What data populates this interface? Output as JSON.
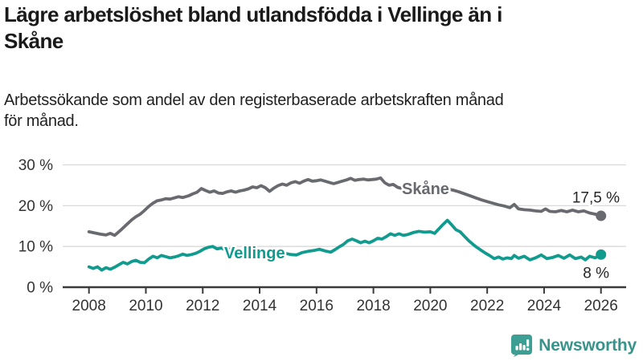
{
  "header": {
    "title": "Lägre arbetslöshet bland utlandsfödda i Vellinge än i Skåne",
    "title_lines": [
      "Lägre arbetslöshet bland utlandsfödda i Vellinge än i",
      "Skåne"
    ],
    "subtitle": "Arbetssökande som andel av den registerbaserade arbetskraften månad för månad.",
    "subtitle_lines": [
      "Arbetssökande som andel av den registerbaserade arbetskraften månad",
      "för månad."
    ]
  },
  "footer": {
    "brand": "Newsworthy",
    "logo_icon": "bar-chart-speech-bubble-icon",
    "accent_color": "#3d9e93",
    "text_color": "#37948a"
  },
  "chart_data": {
    "type": "line",
    "title": "Lägre arbetslöshet bland utlandsfödda i Vellinge än i Skåne",
    "subtitle": "Arbetssökande som andel av den registerbaserade arbetskraften månad för månad.",
    "unit": "%",
    "grid": "horizontal-only",
    "legend_position": "inline-on-line",
    "x_axis": {
      "ticks": [
        2008,
        2010,
        2012,
        2014,
        2016,
        2018,
        2020,
        2022,
        2024,
        2026
      ],
      "range": [
        2007.1,
        2026.9
      ]
    },
    "y_axis": {
      "ticks": [
        0,
        10,
        20,
        30
      ],
      "tick_labels": [
        "0 %",
        "10 %",
        "20 %",
        "30 %"
      ],
      "range": [
        0,
        32
      ]
    },
    "colors": {
      "skane": "#696970",
      "vellinge": "#109b8e",
      "gridline": "#d9d9d9",
      "axis": "#3a3a3a"
    },
    "series": [
      {
        "name": "Skåne",
        "color": "#696970",
        "end_value": 17.5,
        "end_label": "17,5 %",
        "points": [
          [
            2008.0,
            13.6
          ],
          [
            2008.2,
            13.3
          ],
          [
            2008.4,
            13.0
          ],
          [
            2008.6,
            12.8
          ],
          [
            2008.75,
            13.2
          ],
          [
            2008.9,
            12.7
          ],
          [
            2009.0,
            13.3
          ],
          [
            2009.15,
            14.2
          ],
          [
            2009.3,
            15.2
          ],
          [
            2009.5,
            16.5
          ],
          [
            2009.65,
            17.3
          ],
          [
            2009.8,
            17.9
          ],
          [
            2009.95,
            18.8
          ],
          [
            2010.1,
            19.8
          ],
          [
            2010.25,
            20.6
          ],
          [
            2010.4,
            21.2
          ],
          [
            2010.55,
            21.4
          ],
          [
            2010.7,
            21.7
          ],
          [
            2010.85,
            21.6
          ],
          [
            2011.0,
            21.9
          ],
          [
            2011.15,
            22.2
          ],
          [
            2011.3,
            22.0
          ],
          [
            2011.5,
            22.4
          ],
          [
            2011.65,
            22.9
          ],
          [
            2011.8,
            23.3
          ],
          [
            2011.95,
            24.2
          ],
          [
            2012.1,
            23.7
          ],
          [
            2012.25,
            23.3
          ],
          [
            2012.4,
            23.6
          ],
          [
            2012.55,
            23.1
          ],
          [
            2012.7,
            23.0
          ],
          [
            2012.85,
            23.4
          ],
          [
            2013.0,
            23.6
          ],
          [
            2013.15,
            23.3
          ],
          [
            2013.3,
            23.6
          ],
          [
            2013.45,
            23.8
          ],
          [
            2013.6,
            24.1
          ],
          [
            2013.75,
            24.6
          ],
          [
            2013.9,
            24.4
          ],
          [
            2014.05,
            24.9
          ],
          [
            2014.2,
            24.4
          ],
          [
            2014.35,
            23.5
          ],
          [
            2014.5,
            24.3
          ],
          [
            2014.65,
            24.9
          ],
          [
            2014.8,
            25.3
          ],
          [
            2014.95,
            25.0
          ],
          [
            2015.1,
            25.6
          ],
          [
            2015.25,
            25.9
          ],
          [
            2015.4,
            25.5
          ],
          [
            2015.55,
            26.0
          ],
          [
            2015.7,
            26.4
          ],
          [
            2015.85,
            26.0
          ],
          [
            2016.0,
            26.1
          ],
          [
            2016.15,
            26.3
          ],
          [
            2016.3,
            26.0
          ],
          [
            2016.45,
            25.7
          ],
          [
            2016.6,
            25.4
          ],
          [
            2016.75,
            25.7
          ],
          [
            2016.9,
            26.0
          ],
          [
            2017.05,
            26.3
          ],
          [
            2017.2,
            26.7
          ],
          [
            2017.35,
            26.2
          ],
          [
            2017.5,
            26.4
          ],
          [
            2017.65,
            26.5
          ],
          [
            2017.8,
            26.3
          ],
          [
            2017.95,
            26.4
          ],
          [
            2018.1,
            26.5
          ],
          [
            2018.25,
            26.8
          ],
          [
            2018.4,
            25.6
          ],
          [
            2018.55,
            25.0
          ],
          [
            2018.7,
            25.2
          ],
          [
            2018.85,
            24.5
          ],
          [
            2019.0,
            24.2
          ],
          [
            2019.2,
            24.5
          ],
          [
            2019.4,
            24.3
          ],
          [
            2019.6,
            24.1
          ],
          [
            2019.8,
            24.3
          ],
          [
            2020.0,
            24.5
          ],
          [
            2020.2,
            24.3
          ],
          [
            2020.4,
            24.4
          ],
          [
            2020.6,
            24.1
          ],
          [
            2020.8,
            23.8
          ],
          [
            2021.0,
            23.4
          ],
          [
            2021.2,
            22.9
          ],
          [
            2021.4,
            22.4
          ],
          [
            2021.6,
            21.9
          ],
          [
            2021.8,
            21.4
          ],
          [
            2022.0,
            21.0
          ],
          [
            2022.2,
            20.6
          ],
          [
            2022.4,
            20.2
          ],
          [
            2022.6,
            19.9
          ],
          [
            2022.8,
            19.5
          ],
          [
            2022.95,
            20.3
          ],
          [
            2023.1,
            19.2
          ],
          [
            2023.3,
            19.0
          ],
          [
            2023.5,
            18.9
          ],
          [
            2023.7,
            18.7
          ],
          [
            2023.9,
            18.6
          ],
          [
            2024.05,
            19.2
          ],
          [
            2024.2,
            18.6
          ],
          [
            2024.4,
            18.5
          ],
          [
            2024.6,
            18.8
          ],
          [
            2024.8,
            18.5
          ],
          [
            2025.0,
            18.9
          ],
          [
            2025.2,
            18.5
          ],
          [
            2025.4,
            18.7
          ],
          [
            2025.6,
            18.2
          ],
          [
            2025.8,
            17.9
          ],
          [
            2026.0,
            17.5
          ]
        ]
      },
      {
        "name": "Vellinge",
        "color": "#109b8e",
        "end_value": 8,
        "end_label": "8 %",
        "points": [
          [
            2008.0,
            5.0
          ],
          [
            2008.15,
            4.6
          ],
          [
            2008.3,
            5.0
          ],
          [
            2008.45,
            4.2
          ],
          [
            2008.6,
            4.8
          ],
          [
            2008.75,
            4.4
          ],
          [
            2008.9,
            4.9
          ],
          [
            2009.05,
            5.5
          ],
          [
            2009.2,
            6.1
          ],
          [
            2009.35,
            5.7
          ],
          [
            2009.5,
            6.3
          ],
          [
            2009.65,
            6.6
          ],
          [
            2009.8,
            6.1
          ],
          [
            2009.95,
            6.0
          ],
          [
            2010.1,
            6.9
          ],
          [
            2010.25,
            7.6
          ],
          [
            2010.4,
            7.2
          ],
          [
            2010.55,
            7.8
          ],
          [
            2010.7,
            7.5
          ],
          [
            2010.85,
            7.2
          ],
          [
            2011.0,
            7.4
          ],
          [
            2011.15,
            7.7
          ],
          [
            2011.3,
            8.1
          ],
          [
            2011.45,
            7.8
          ],
          [
            2011.6,
            8.0
          ],
          [
            2011.75,
            8.3
          ],
          [
            2011.9,
            8.8
          ],
          [
            2012.05,
            9.4
          ],
          [
            2012.2,
            9.8
          ],
          [
            2012.35,
            10.0
          ],
          [
            2012.5,
            9.4
          ],
          [
            2012.65,
            9.6
          ],
          [
            2012.8,
            9.1
          ],
          [
            2012.95,
            9.3
          ],
          [
            2013.1,
            8.9
          ],
          [
            2013.3,
            9.1
          ],
          [
            2013.5,
            8.8
          ],
          [
            2013.7,
            8.5
          ],
          [
            2013.9,
            8.7
          ],
          [
            2014.1,
            8.9
          ],
          [
            2014.3,
            8.6
          ],
          [
            2014.5,
            8.8
          ],
          [
            2014.7,
            8.5
          ],
          [
            2014.9,
            8.3
          ],
          [
            2015.1,
            8.0
          ],
          [
            2015.3,
            7.9
          ],
          [
            2015.5,
            8.5
          ],
          [
            2015.7,
            8.8
          ],
          [
            2015.9,
            9.0
          ],
          [
            2016.1,
            9.3
          ],
          [
            2016.3,
            8.9
          ],
          [
            2016.5,
            8.6
          ],
          [
            2016.65,
            9.2
          ],
          [
            2016.8,
            9.9
          ],
          [
            2016.95,
            10.5
          ],
          [
            2017.1,
            11.4
          ],
          [
            2017.25,
            11.8
          ],
          [
            2017.4,
            11.4
          ],
          [
            2017.55,
            10.9
          ],
          [
            2017.7,
            11.3
          ],
          [
            2017.85,
            10.9
          ],
          [
            2018.0,
            11.4
          ],
          [
            2018.15,
            12.0
          ],
          [
            2018.3,
            11.8
          ],
          [
            2018.45,
            12.4
          ],
          [
            2018.6,
            13.1
          ],
          [
            2018.75,
            12.7
          ],
          [
            2018.9,
            13.1
          ],
          [
            2019.05,
            12.7
          ],
          [
            2019.2,
            12.9
          ],
          [
            2019.4,
            13.4
          ],
          [
            2019.6,
            13.7
          ],
          [
            2019.8,
            13.5
          ],
          [
            2020.0,
            13.6
          ],
          [
            2020.15,
            13.2
          ],
          [
            2020.3,
            14.3
          ],
          [
            2020.45,
            15.4
          ],
          [
            2020.6,
            16.4
          ],
          [
            2020.75,
            15.3
          ],
          [
            2020.9,
            14.1
          ],
          [
            2021.05,
            13.6
          ],
          [
            2021.2,
            12.5
          ],
          [
            2021.35,
            11.4
          ],
          [
            2021.5,
            10.5
          ],
          [
            2021.65,
            9.7
          ],
          [
            2021.8,
            9.0
          ],
          [
            2021.95,
            8.3
          ],
          [
            2022.1,
            7.7
          ],
          [
            2022.25,
            7.0
          ],
          [
            2022.4,
            7.4
          ],
          [
            2022.55,
            6.9
          ],
          [
            2022.7,
            7.2
          ],
          [
            2022.85,
            7.0
          ],
          [
            2022.95,
            7.8
          ],
          [
            2023.1,
            7.1
          ],
          [
            2023.3,
            7.6
          ],
          [
            2023.5,
            6.7
          ],
          [
            2023.7,
            7.2
          ],
          [
            2023.9,
            7.9
          ],
          [
            2024.1,
            7.0
          ],
          [
            2024.3,
            7.3
          ],
          [
            2024.5,
            7.8
          ],
          [
            2024.7,
            7.1
          ],
          [
            2024.9,
            7.9
          ],
          [
            2025.1,
            7.0
          ],
          [
            2025.3,
            7.4
          ],
          [
            2025.45,
            6.7
          ],
          [
            2025.6,
            7.6
          ],
          [
            2025.8,
            7.2
          ],
          [
            2026.0,
            8.0
          ]
        ]
      }
    ]
  }
}
